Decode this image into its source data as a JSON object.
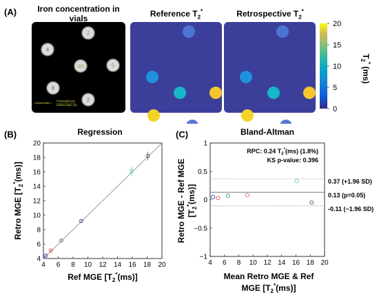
{
  "panels": {
    "a": {
      "label": "(A)",
      "vials_title_line1": "Iron concentration in",
      "vials_title_line2": "vials",
      "reference_title": "Reference T",
      "retro_title": "Retrospective T",
      "t2_sub": "2",
      "t2_sup": "*",
      "vial_labels": [
        "2",
        "4",
        "0/0",
        "5",
        "8",
        "2"
      ],
      "legend_line1": "Concentration = ",
      "legend_line2": "Ferumoxytol (ul)",
      "legend_line3": "Distilled water (ml)",
      "colorbar": {
        "ticks": [
          "20",
          "15",
          "10",
          "5",
          "0"
        ],
        "label_main": "T",
        "label_sub": "2",
        "label_sup": "*",
        "label_unit": " (ms)"
      }
    },
    "b": {
      "label": "(B)",
      "title": "Regression",
      "xlabel_pre": "Ref MGE [T",
      "xlabel_post": "(ms)]",
      "ylabel_pre": "Retro MGE  [T",
      "ylabel_post": "(ms)]",
      "sub": "2",
      "sup": "*"
    },
    "c": {
      "label": "(C)",
      "title": "Bland-Altman",
      "rpc_pre": "RPC: 0.24 T",
      "rpc_post": "(ms) (1.8%)",
      "ks": "KS p-value: 0.396",
      "line_upper": "0.37 (+1.96 SD)",
      "line_mean": "0.13 (p=0.05)",
      "line_lower": "-0.11 (−1.96 SD)",
      "xlabel_line1": "Mean Retro MGE & Ref",
      "xlabel_line2_pre": "MGE [T",
      "xlabel_line2_post": "(ms)]",
      "ylabel_line1": "Retro MGE - Ref MGE",
      "ylabel_line2_pre": "[T",
      "ylabel_line2_post": "(ms)]",
      "sub": "2",
      "sup": "*"
    }
  },
  "colors": {
    "map_background": "#3b3f9a",
    "vial_background": "#000000",
    "line": "#9b9b9b"
  },
  "chart_data": [
    {
      "type": "heatmap",
      "title": "Reference T2*",
      "colorbar_range": [
        0,
        20
      ],
      "colormap": "parula",
      "vials_T2": [
        4.5,
        6.5,
        9.2,
        16,
        18,
        4.5
      ],
      "vial_colors": [
        "#4e74d2",
        "#1f91dc",
        "#18b6c9",
        "#f6c42c",
        "#f2d427",
        "#5a77d6"
      ]
    },
    {
      "type": "heatmap",
      "title": "Retrospective T2*",
      "colorbar_range": [
        0,
        20
      ],
      "colormap": "parula",
      "vials_T2": [
        4.6,
        6.5,
        9.3,
        16.2,
        18.2,
        4.6
      ],
      "vial_colors": [
        "#4e74d2",
        "#1f91dc",
        "#18b6c9",
        "#f6c42c",
        "#f2d427",
        "#5a77d6"
      ]
    },
    {
      "type": "scatter",
      "title": "Regression",
      "xlim": [
        4,
        20
      ],
      "ylim": [
        4,
        20
      ],
      "xticks": [
        4,
        6,
        8,
        10,
        12,
        14,
        16,
        18,
        20
      ],
      "yticks": [
        4,
        6,
        8,
        10,
        12,
        14,
        16,
        18,
        20
      ],
      "x": [
        4.3,
        5.0,
        6.4,
        9.1,
        15.9,
        18.1
      ],
      "y": [
        4.4,
        5.1,
        6.5,
        9.2,
        16.1,
        18.2
      ],
      "yerr": [
        0.15,
        0.15,
        0.2,
        0.25,
        0.7,
        0.6
      ],
      "colors": [
        "#3c4bb0",
        "#e05050",
        "#7a7a7a",
        "#7a4a9a",
        "#60d0b0",
        "#555555"
      ],
      "identity_line": [
        [
          4,
          4
        ],
        [
          20,
          20
        ]
      ]
    },
    {
      "type": "scatter",
      "title": "Bland-Altman",
      "xlim": [
        4,
        20
      ],
      "ylim": [
        -1,
        1
      ],
      "xticks": [
        4,
        6,
        8,
        10,
        12,
        14,
        16,
        18,
        20
      ],
      "yticks": [
        -1,
        -0.5,
        0,
        0.5,
        1
      ],
      "ytick_labels": [
        "−1",
        "−0.5",
        "0",
        "0.5",
        "1"
      ],
      "x": [
        4.4,
        5.1,
        6.5,
        9.2,
        16.1,
        18.2
      ],
      "y": [
        0.05,
        0.03,
        0.07,
        0.08,
        0.33,
        -0.05
      ],
      "colors": [
        "#3c4bb0",
        "#e05050",
        "#30a060",
        "#e07070",
        "#60d0b0",
        "#555555"
      ],
      "mean_line": 0.13,
      "upper_loa": 0.37,
      "lower_loa": -0.11
    }
  ]
}
